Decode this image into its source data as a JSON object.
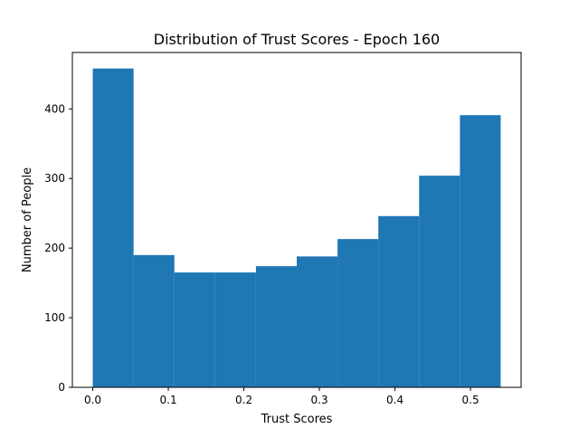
{
  "chart_data": {
    "type": "bar",
    "title": "Distribution of Trust Scores - Epoch 160",
    "xlabel": "Trust Scores",
    "ylabel": "Number of People",
    "xlim": [
      -0.027,
      0.567
    ],
    "ylim": [
      0,
      481
    ],
    "grid": false,
    "bar_color": "#1f77b4",
    "bin_edges": [
      0.0,
      0.054,
      0.108,
      0.162,
      0.216,
      0.27,
      0.324,
      0.378,
      0.432,
      0.486,
      0.54
    ],
    "values": [
      458,
      190,
      165,
      165,
      174,
      188,
      213,
      246,
      304,
      391
    ],
    "x_ticks": [
      0.0,
      0.1,
      0.2,
      0.3,
      0.4,
      0.5
    ],
    "x_tick_labels": [
      "0.0",
      "0.1",
      "0.2",
      "0.3",
      "0.4",
      "0.5"
    ],
    "y_ticks": [
      0,
      100,
      200,
      300,
      400
    ],
    "y_tick_labels": [
      "0",
      "100",
      "200",
      "300",
      "400"
    ]
  }
}
